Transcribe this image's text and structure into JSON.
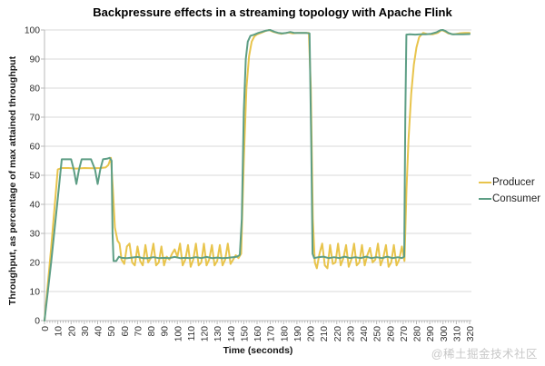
{
  "page": {
    "watermark": "@稀土掘金技术社区"
  },
  "chart_data": {
    "type": "line",
    "title": "Backpressure effects in a streaming topology with Apache Flink",
    "xlabel": "Time (seconds)",
    "ylabel": "Throughput, as percentage of max attained throughput",
    "xlim": [
      0,
      320
    ],
    "ylim": [
      0,
      100
    ],
    "x_ticks": [
      0,
      10,
      20,
      30,
      40,
      50,
      60,
      70,
      80,
      90,
      100,
      110,
      120,
      130,
      140,
      150,
      160,
      170,
      180,
      190,
      200,
      210,
      220,
      230,
      240,
      250,
      260,
      270,
      280,
      290,
      300,
      310,
      320
    ],
    "y_ticks": [
      0,
      10,
      20,
      30,
      40,
      50,
      60,
      70,
      80,
      90,
      100
    ],
    "x_minor_tick_step": 2,
    "grid": "horizontal-only",
    "legend_position": "right",
    "colors": {
      "grid": "#d9d9d9",
      "axis": "#b8b8b8",
      "tick_label": "#2e2e2e",
      "watermark": "#c7c7c7"
    },
    "series": [
      {
        "name": "Producer",
        "color": "#E8C44C",
        "points": [
          [
            0,
            0
          ],
          [
            5,
            25
          ],
          [
            10,
            52
          ],
          [
            13,
            52.5
          ],
          [
            18,
            52.5
          ],
          [
            24,
            52.3
          ],
          [
            30,
            52.5
          ],
          [
            36,
            52.4
          ],
          [
            42,
            52.5
          ],
          [
            46,
            52.7
          ],
          [
            48,
            53.5
          ],
          [
            50,
            56
          ],
          [
            51.5,
            45
          ],
          [
            53,
            32
          ],
          [
            55,
            27.5
          ],
          [
            56.5,
            26.5
          ],
          [
            58,
            21
          ],
          [
            60,
            19.5
          ],
          [
            62,
            25.5
          ],
          [
            64,
            26.5
          ],
          [
            66,
            20
          ],
          [
            68,
            19
          ],
          [
            70,
            25.5
          ],
          [
            72,
            20.5
          ],
          [
            74,
            19
          ],
          [
            76,
            26
          ],
          [
            78,
            20
          ],
          [
            80,
            21.5
          ],
          [
            82,
            26.5
          ],
          [
            84,
            19
          ],
          [
            86,
            20
          ],
          [
            88,
            25.5
          ],
          [
            90,
            19
          ],
          [
            92,
            22
          ],
          [
            94,
            21
          ],
          [
            96,
            23
          ],
          [
            98,
            24.5
          ],
          [
            100,
            22
          ],
          [
            102,
            26.5
          ],
          [
            104,
            19
          ],
          [
            106,
            21
          ],
          [
            108,
            26
          ],
          [
            110,
            18.5
          ],
          [
            112,
            21
          ],
          [
            114,
            26.5
          ],
          [
            116,
            19
          ],
          [
            118,
            20
          ],
          [
            120,
            26.5
          ],
          [
            122,
            19
          ],
          [
            124,
            21
          ],
          [
            126,
            26
          ],
          [
            128,
            19
          ],
          [
            130,
            20.5
          ],
          [
            132,
            26
          ],
          [
            134,
            19
          ],
          [
            136,
            21
          ],
          [
            138,
            26.5
          ],
          [
            140,
            19.5
          ],
          [
            142,
            21
          ],
          [
            144,
            22.5
          ],
          [
            146,
            21.5
          ],
          [
            148,
            23
          ],
          [
            150,
            55
          ],
          [
            152,
            80
          ],
          [
            154,
            91
          ],
          [
            156,
            96
          ],
          [
            158,
            97.8
          ],
          [
            160,
            98.5
          ],
          [
            163,
            99
          ],
          [
            166,
            99.6
          ],
          [
            169,
            100
          ],
          [
            172,
            99.4
          ],
          [
            175,
            99
          ],
          [
            178,
            98.7
          ],
          [
            181,
            98.9
          ],
          [
            184,
            99.1
          ],
          [
            187,
            98.8
          ],
          [
            190,
            99
          ],
          [
            193,
            99
          ],
          [
            196,
            99
          ],
          [
            199,
            99
          ],
          [
            200.5,
            80
          ],
          [
            202,
            35
          ],
          [
            203.5,
            20
          ],
          [
            205,
            18
          ],
          [
            207,
            23
          ],
          [
            209,
            26.5
          ],
          [
            211,
            19
          ],
          [
            213,
            18
          ],
          [
            215,
            26
          ],
          [
            217,
            19.5
          ],
          [
            219,
            20
          ],
          [
            221,
            26.5
          ],
          [
            223,
            19
          ],
          [
            225,
            21.5
          ],
          [
            227,
            26
          ],
          [
            229,
            18.5
          ],
          [
            231,
            21
          ],
          [
            233,
            26.5
          ],
          [
            235,
            19
          ],
          [
            237,
            20
          ],
          [
            239,
            26
          ],
          [
            241,
            19
          ],
          [
            243,
            22.5
          ],
          [
            245,
            25
          ],
          [
            247,
            20
          ],
          [
            249,
            21
          ],
          [
            251,
            26.5
          ],
          [
            253,
            19
          ],
          [
            255,
            21.5
          ],
          [
            257,
            26
          ],
          [
            259,
            18.5
          ],
          [
            261,
            20
          ],
          [
            263,
            26
          ],
          [
            265,
            19
          ],
          [
            267,
            21
          ],
          [
            269,
            25.5
          ],
          [
            271,
            20.5
          ],
          [
            272.5,
            45
          ],
          [
            274,
            62
          ],
          [
            276,
            78
          ],
          [
            278,
            88
          ],
          [
            280,
            94
          ],
          [
            282,
            97.5
          ],
          [
            285,
            99
          ],
          [
            288,
            98.6
          ],
          [
            292,
            98.5
          ],
          [
            296,
            99
          ],
          [
            299,
            100
          ],
          [
            301,
            99.6
          ],
          [
            304,
            98.8
          ],
          [
            308,
            98.5
          ],
          [
            312,
            98.8
          ],
          [
            316,
            99
          ],
          [
            320,
            99
          ]
        ]
      },
      {
        "name": "Consumer",
        "color": "#5D9E85",
        "points": [
          [
            0,
            0
          ],
          [
            5,
            20
          ],
          [
            10,
            42
          ],
          [
            13,
            55.5
          ],
          [
            17,
            55.5
          ],
          [
            20,
            55.5
          ],
          [
            22,
            52
          ],
          [
            24,
            47
          ],
          [
            26,
            52
          ],
          [
            28,
            55.5
          ],
          [
            32,
            55.5
          ],
          [
            35,
            55.5
          ],
          [
            38,
            52
          ],
          [
            40,
            47
          ],
          [
            42,
            52
          ],
          [
            44,
            55.5
          ],
          [
            47,
            55.7
          ],
          [
            49,
            56
          ],
          [
            50.5,
            55
          ],
          [
            51.2,
            30
          ],
          [
            52,
            20.5
          ],
          [
            54,
            20.5
          ],
          [
            56,
            22
          ],
          [
            58,
            21.6
          ],
          [
            62,
            21.5
          ],
          [
            66,
            21.7
          ],
          [
            70,
            21.9
          ],
          [
            74,
            21.5
          ],
          [
            78,
            21.5
          ],
          [
            82,
            21.8
          ],
          [
            86,
            21.5
          ],
          [
            90,
            21.6
          ],
          [
            94,
            21.5
          ],
          [
            98,
            21.9
          ],
          [
            102,
            21.5
          ],
          [
            106,
            21.6
          ],
          [
            110,
            21.5
          ],
          [
            114,
            21.8
          ],
          [
            118,
            21.5
          ],
          [
            122,
            21.9
          ],
          [
            126,
            21.5
          ],
          [
            130,
            21.7
          ],
          [
            134,
            21.5
          ],
          [
            138,
            21.6
          ],
          [
            142,
            21.8
          ],
          [
            145,
            22
          ],
          [
            147,
            22.6
          ],
          [
            148.5,
            35
          ],
          [
            150,
            72
          ],
          [
            151.5,
            90
          ],
          [
            153,
            96
          ],
          [
            155,
            98
          ],
          [
            158,
            98.4
          ],
          [
            161,
            99
          ],
          [
            164,
            99.4
          ],
          [
            167,
            99.8
          ],
          [
            170,
            100
          ],
          [
            173,
            99.4
          ],
          [
            176,
            99
          ],
          [
            179,
            98.8
          ],
          [
            182,
            99
          ],
          [
            185,
            99.3
          ],
          [
            188,
            99
          ],
          [
            191,
            99
          ],
          [
            194,
            99
          ],
          [
            197,
            99
          ],
          [
            199.5,
            98.8
          ],
          [
            200.8,
            60
          ],
          [
            201.8,
            23
          ],
          [
            203,
            21.5
          ],
          [
            206,
            21.8
          ],
          [
            210,
            22
          ],
          [
            214,
            21.5
          ],
          [
            218,
            21.8
          ],
          [
            222,
            21.5
          ],
          [
            226,
            22
          ],
          [
            230,
            21.5
          ],
          [
            234,
            21.8
          ],
          [
            238,
            21.5
          ],
          [
            242,
            22
          ],
          [
            246,
            21.5
          ],
          [
            250,
            21.8
          ],
          [
            254,
            21.5
          ],
          [
            258,
            22
          ],
          [
            262,
            21.5
          ],
          [
            266,
            21.8
          ],
          [
            269,
            21.5
          ],
          [
            270.8,
            22
          ],
          [
            271.6,
            70
          ],
          [
            272.4,
            98.4
          ],
          [
            275,
            98.5
          ],
          [
            279,
            98.4
          ],
          [
            283,
            98.5
          ],
          [
            287,
            98.5
          ],
          [
            291,
            98.7
          ],
          [
            295,
            99.2
          ],
          [
            298,
            99.9
          ],
          [
            300,
            100
          ],
          [
            302,
            99.6
          ],
          [
            304,
            99
          ],
          [
            307,
            98.5
          ],
          [
            311,
            98.5
          ],
          [
            315,
            98.5
          ],
          [
            320,
            98.6
          ]
        ]
      }
    ]
  }
}
